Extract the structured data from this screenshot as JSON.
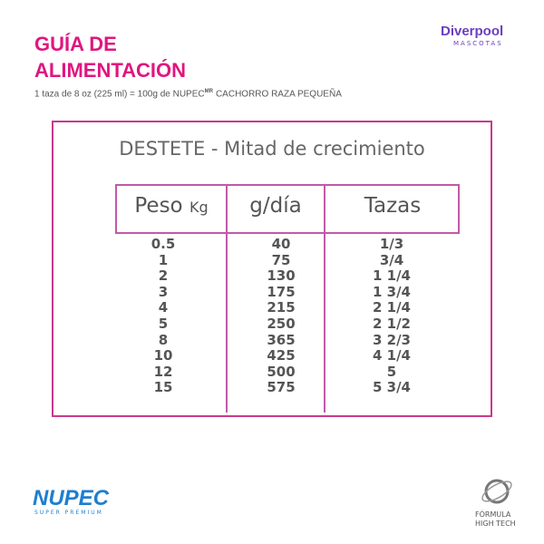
{
  "header": {
    "title_lines": [
      "GUÍA DE",
      "ALIMENTACIÓN"
    ],
    "subtitle": {
      "before": "1 taza de 8 oz (225 ml) = 100g de NUPEC",
      "mark": "MR",
      "after": "CACHORRO RAZA PEQUEÑA"
    },
    "brand": {
      "name": "Diverpool",
      "tagline": "MASCOTAS"
    }
  },
  "table": {
    "title": "DESTETE - Mitad de crecimiento",
    "columns": [
      {
        "label": "Peso",
        "unit": "Kg"
      },
      {
        "label": "g/día"
      },
      {
        "label": "Tazas"
      }
    ],
    "rows": [
      [
        "0.5",
        "40",
        "1/3"
      ],
      [
        "1",
        "75",
        "3/4"
      ],
      [
        "2",
        "130",
        "1 1/4"
      ],
      [
        "3",
        "175",
        "1 3/4"
      ],
      [
        "4",
        "215",
        "2 1/4"
      ],
      [
        "5",
        "250",
        "2 1/2"
      ],
      [
        "8",
        "365",
        "3 2/3"
      ],
      [
        "10",
        "425",
        "4 1/4"
      ],
      [
        "12",
        "500",
        "5"
      ],
      [
        "15",
        "575",
        "5 3/4"
      ]
    ]
  },
  "footer": {
    "nupec": {
      "name": "NUPEC",
      "tagline": "SUPER PREMIUM"
    },
    "formula": {
      "line1": "FÓRMULA",
      "line2": "HIGH TECH"
    }
  }
}
